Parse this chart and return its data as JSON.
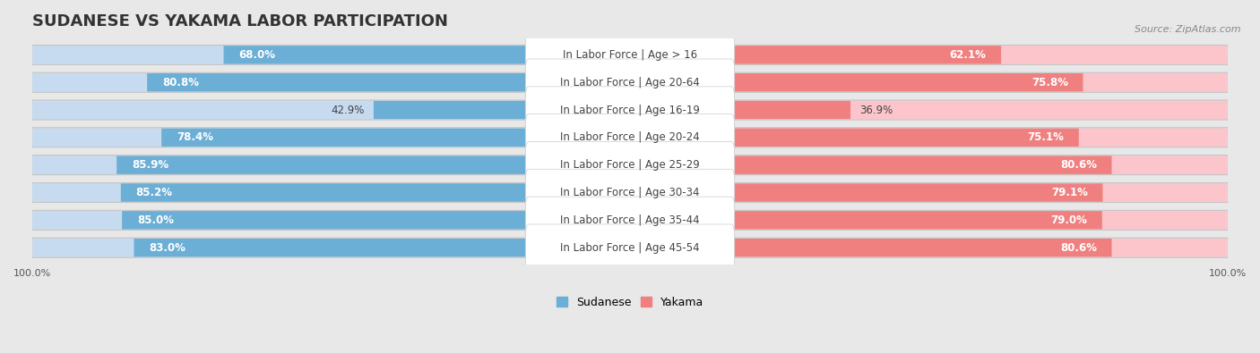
{
  "title": "SUDANESE VS YAKAMA LABOR PARTICIPATION",
  "source": "Source: ZipAtlas.com",
  "categories": [
    "In Labor Force | Age > 16",
    "In Labor Force | Age 20-64",
    "In Labor Force | Age 16-19",
    "In Labor Force | Age 20-24",
    "In Labor Force | Age 25-29",
    "In Labor Force | Age 30-34",
    "In Labor Force | Age 35-44",
    "In Labor Force | Age 45-54"
  ],
  "sudanese": [
    68.0,
    80.8,
    42.9,
    78.4,
    85.9,
    85.2,
    85.0,
    83.0
  ],
  "yakama": [
    62.1,
    75.8,
    36.9,
    75.1,
    80.6,
    79.1,
    79.0,
    80.6
  ],
  "sudanese_color": "#6baed6",
  "sudanese_color_light": "#c6dbef",
  "yakama_color": "#f08080",
  "yakama_color_light": "#fcc5cc",
  "background_color": "#e8e8e8",
  "bar_bg_color": "#d8d8d8",
  "title_fontsize": 13,
  "label_fontsize": 8.5,
  "value_fontsize": 8.5,
  "legend_fontsize": 9,
  "axis_label_fontsize": 8,
  "max_val": 100.0
}
